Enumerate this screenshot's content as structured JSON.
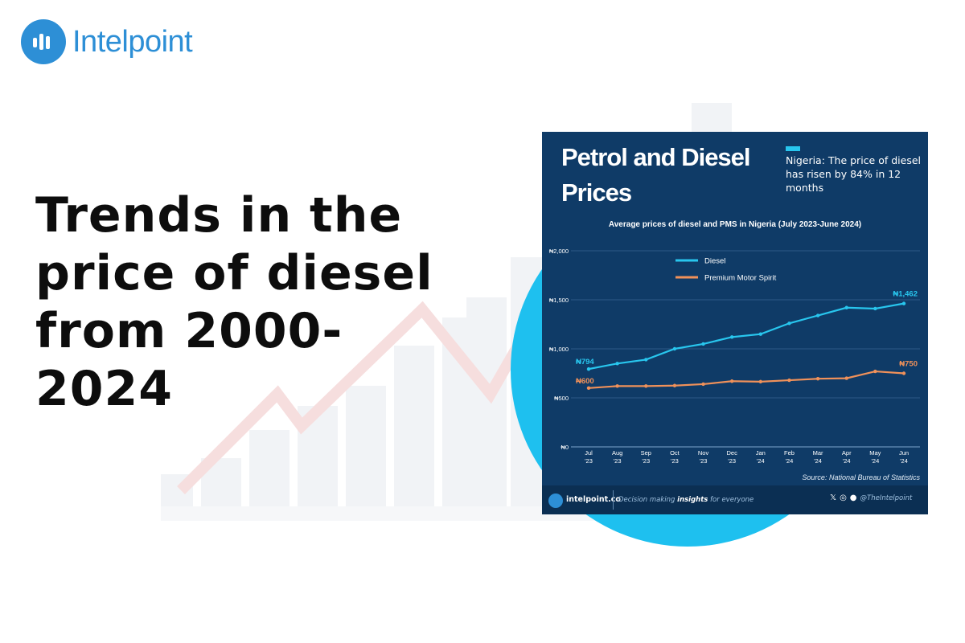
{
  "brand": {
    "name": "Intelpoint",
    "color": "#2d8fd6"
  },
  "headline": " Trends in the\nprice of diesel\nfrom 2000-\n2024",
  "card": {
    "title": "Petrol and Diesel Prices",
    "callout": "Nigeria: The price of diesel has risen by 84% in 12 months",
    "background": "#0f3b67"
  },
  "chart_data": {
    "type": "line",
    "title": "Average prices of diesel and PMS in Nigeria (July 2023-June 2024)",
    "categories": [
      "Jul '23",
      "Aug '23",
      "Sep '23",
      "Oct '23",
      "Nov '23",
      "Dec '23",
      "Jan '24",
      "Feb '24",
      "Mar '24",
      "Apr '24",
      "May '24",
      "Jun '24"
    ],
    "series": [
      {
        "name": "Diesel",
        "color": "#28c6ee",
        "values": [
          794,
          850,
          890,
          1000,
          1050,
          1120,
          1150,
          1260,
          1340,
          1420,
          1410,
          1462
        ]
      },
      {
        "name": "Premium Motor Spirit",
        "color": "#f0915a",
        "values": [
          600,
          620,
          620,
          625,
          640,
          670,
          665,
          680,
          695,
          700,
          770,
          750
        ]
      }
    ],
    "ylim": [
      0,
      2000
    ],
    "yticks": [
      "₦0",
      "₦500",
      "₦1,000",
      "₦1,500",
      "₦2,000"
    ],
    "data_labels": {
      "Diesel": {
        "first": "₦794",
        "last": "₦1,462"
      },
      "Premium Motor Spirit": {
        "first": "₦600",
        "last": "₦750"
      }
    },
    "legend": "top-left",
    "source": "Source: National Bureau of Statistics"
  },
  "footer": {
    "site": "intelpoint.co",
    "tagline_pre": "Decision making ",
    "tagline_bold": "insights",
    "tagline_post": " for everyone",
    "handle": "@TheIntelpoint",
    "icons": [
      "x-icon",
      "instagram-icon",
      "facebook-icon"
    ]
  }
}
